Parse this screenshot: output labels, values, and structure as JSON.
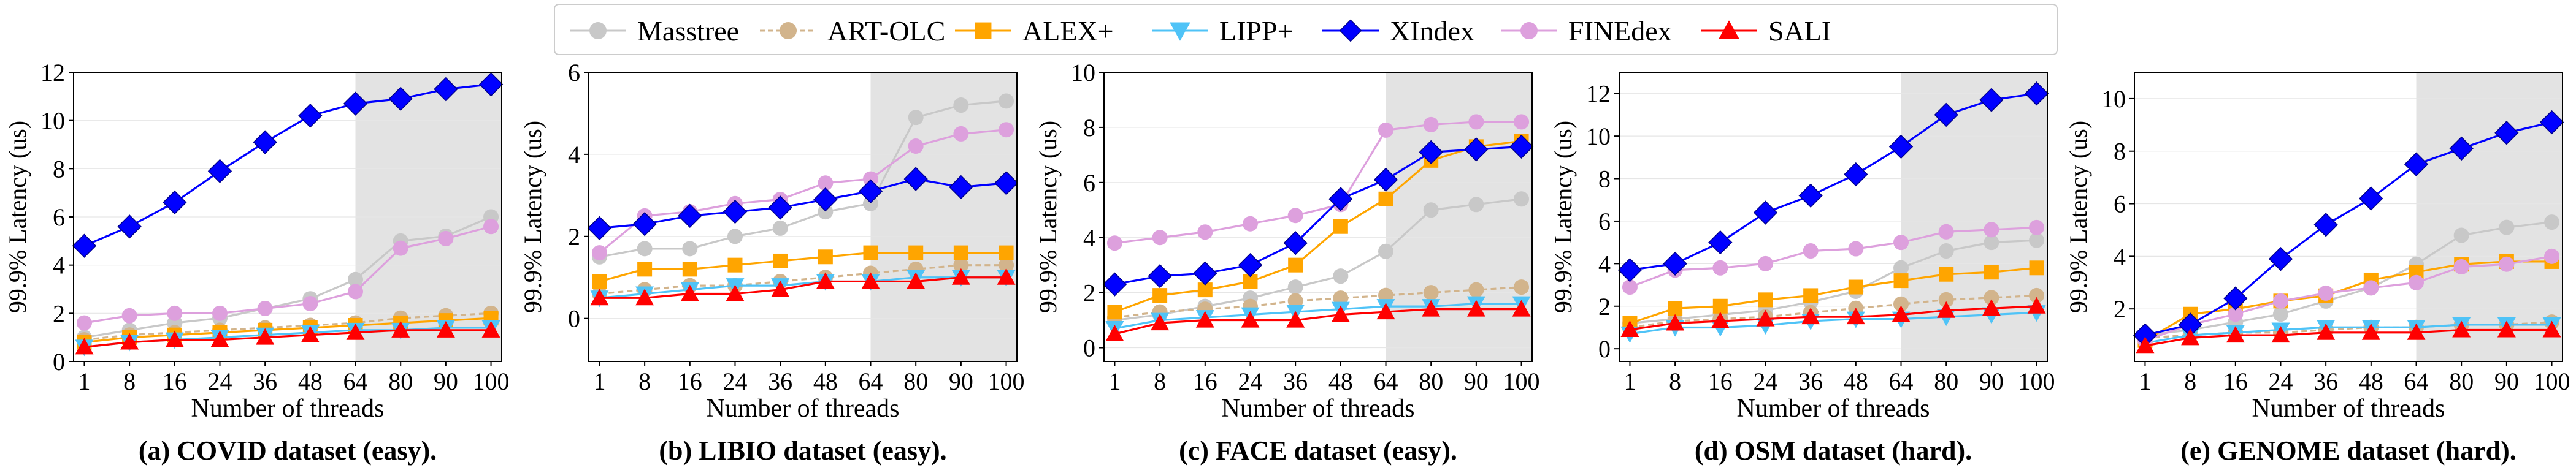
{
  "legend": [
    {
      "name": "Masstree",
      "color": "#c8c8c8",
      "marker": "circle",
      "dash": false
    },
    {
      "name": "ART-OLC",
      "color": "#d2b48c",
      "marker": "circle",
      "dash": true
    },
    {
      "name": "ALEX+",
      "color": "#ffa500",
      "marker": "square",
      "dash": false
    },
    {
      "name": "LIPP+",
      "color": "#4fc3f7",
      "marker": "triangle-down",
      "dash": false
    },
    {
      "name": "XIndex",
      "color": "#0000ff",
      "marker": "diamond",
      "dash": false
    },
    {
      "name": "FINEdex",
      "color": "#dda0dd",
      "marker": "circle",
      "dash": false
    },
    {
      "name": "SALI",
      "color": "#ff0000",
      "marker": "triangle-up",
      "dash": false
    }
  ],
  "chart_data": [
    {
      "type": "line",
      "title": "(a) COVID dataset (easy).",
      "xlabel": "Number of threads",
      "ylabel": "99.9% Latency (us)",
      "x": [
        "1",
        "8",
        "16",
        "24",
        "36",
        "48",
        "64",
        "80",
        "90",
        "100"
      ],
      "ylim": [
        0,
        12
      ],
      "yticks": [
        "0",
        "2",
        "4",
        "6",
        "8",
        "10",
        "12"
      ],
      "shaded_from": "64",
      "series": [
        {
          "name": "Masstree",
          "values": [
            1.0,
            1.3,
            1.6,
            1.8,
            2.2,
            2.6,
            3.4,
            5.0,
            5.2,
            6.0
          ]
        },
        {
          "name": "ART-OLC",
          "values": [
            0.9,
            1.1,
            1.2,
            1.3,
            1.4,
            1.5,
            1.6,
            1.8,
            1.9,
            2.0
          ]
        },
        {
          "name": "ALEX+",
          "values": [
            0.8,
            1.0,
            1.1,
            1.2,
            1.3,
            1.4,
            1.5,
            1.6,
            1.7,
            1.8
          ]
        },
        {
          "name": "LIPP+",
          "values": [
            0.6,
            0.8,
            0.9,
            1.0,
            1.1,
            1.2,
            1.3,
            1.3,
            1.4,
            1.4
          ]
        },
        {
          "name": "XIndex",
          "values": [
            4.8,
            5.6,
            6.6,
            7.9,
            9.1,
            10.2,
            10.7,
            10.9,
            11.3,
            11.5
          ]
        },
        {
          "name": "FINEdex",
          "values": [
            1.6,
            1.9,
            2.0,
            2.0,
            2.2,
            2.4,
            2.9,
            4.7,
            5.1,
            5.6
          ]
        },
        {
          "name": "SALI",
          "values": [
            0.6,
            0.8,
            0.9,
            0.9,
            1.0,
            1.1,
            1.2,
            1.3,
            1.3,
            1.3
          ]
        }
      ]
    },
    {
      "type": "line",
      "title": "(b) LIBIO dataset (easy).",
      "xlabel": "Number of threads",
      "ylabel": "99.9% Latency (us)",
      "x": [
        "1",
        "8",
        "16",
        "24",
        "36",
        "48",
        "64",
        "80",
        "90",
        "100"
      ],
      "ylim": [
        -1.05,
        6
      ],
      "yticks": [
        "0",
        "2",
        "4",
        "6"
      ],
      "shaded_from": "64",
      "series": [
        {
          "name": "Masstree",
          "values": [
            1.5,
            1.7,
            1.7,
            2.0,
            2.2,
            2.6,
            2.8,
            4.9,
            5.2,
            5.3
          ]
        },
        {
          "name": "ART-OLC",
          "values": [
            0.6,
            0.7,
            0.8,
            0.8,
            0.9,
            1.0,
            1.1,
            1.2,
            1.3,
            1.3
          ]
        },
        {
          "name": "ALEX+",
          "values": [
            0.9,
            1.2,
            1.2,
            1.3,
            1.4,
            1.5,
            1.6,
            1.6,
            1.6,
            1.6
          ]
        },
        {
          "name": "LIPP+",
          "values": [
            0.5,
            0.6,
            0.7,
            0.8,
            0.8,
            0.9,
            0.9,
            1.0,
            1.0,
            1.0
          ]
        },
        {
          "name": "XIndex",
          "values": [
            2.2,
            2.3,
            2.5,
            2.6,
            2.7,
            2.9,
            3.1,
            3.4,
            3.2,
            3.3
          ]
        },
        {
          "name": "FINEdex",
          "values": [
            1.6,
            2.5,
            2.6,
            2.8,
            2.9,
            3.3,
            3.4,
            4.2,
            4.5,
            4.6
          ]
        },
        {
          "name": "SALI",
          "values": [
            0.5,
            0.5,
            0.6,
            0.6,
            0.7,
            0.9,
            0.9,
            0.9,
            1.0,
            1.0
          ]
        }
      ]
    },
    {
      "type": "line",
      "title": "(c) FACE dataset (easy).",
      "xlabel": "Number of threads",
      "ylabel": "99.9% Latency (us)",
      "x": [
        "1",
        "8",
        "16",
        "24",
        "36",
        "48",
        "64",
        "80",
        "90",
        "100"
      ],
      "ylim": [
        -0.5,
        10
      ],
      "yticks": [
        "0",
        "2",
        "4",
        "6",
        "8",
        "10"
      ],
      "shaded_from": "64",
      "series": [
        {
          "name": "Masstree",
          "values": [
            1.0,
            1.2,
            1.5,
            1.8,
            2.2,
            2.6,
            3.5,
            5.0,
            5.2,
            5.4
          ]
        },
        {
          "name": "ART-OLC",
          "values": [
            1.1,
            1.3,
            1.4,
            1.5,
            1.7,
            1.8,
            1.9,
            2.0,
            2.1,
            2.2
          ]
        },
        {
          "name": "ALEX+",
          "values": [
            1.3,
            1.9,
            2.1,
            2.4,
            3.0,
            4.4,
            5.4,
            6.8,
            7.3,
            7.5
          ]
        },
        {
          "name": "LIPP+",
          "values": [
            0.7,
            1.0,
            1.1,
            1.2,
            1.3,
            1.4,
            1.5,
            1.5,
            1.6,
            1.6
          ]
        },
        {
          "name": "XIndex",
          "values": [
            2.3,
            2.6,
            2.7,
            3.0,
            3.8,
            5.4,
            6.1,
            7.1,
            7.2,
            7.3
          ]
        },
        {
          "name": "FINEdex",
          "values": [
            3.8,
            4.0,
            4.2,
            4.5,
            4.8,
            5.2,
            7.9,
            8.1,
            8.2,
            8.2
          ]
        },
        {
          "name": "SALI",
          "values": [
            0.5,
            0.9,
            1.0,
            1.0,
            1.0,
            1.2,
            1.3,
            1.4,
            1.4,
            1.4
          ]
        }
      ]
    },
    {
      "type": "line",
      "title": "(d) OSM dataset (hard).",
      "xlabel": "Number of threads",
      "ylabel": "99.9% Latency (us)",
      "x": [
        "1",
        "8",
        "16",
        "24",
        "36",
        "48",
        "64",
        "80",
        "90",
        "100"
      ],
      "ylim": [
        -0.6,
        13
      ],
      "yticks": [
        "0",
        "2",
        "4",
        "6",
        "8",
        "10",
        "12"
      ],
      "shaded_from": "64",
      "series": [
        {
          "name": "Masstree",
          "values": [
            1.2,
            1.4,
            1.6,
            1.8,
            2.2,
            2.7,
            3.8,
            4.6,
            5.0,
            5.1
          ]
        },
        {
          "name": "ART-OLC",
          "values": [
            1.0,
            1.3,
            1.4,
            1.5,
            1.7,
            1.9,
            2.1,
            2.3,
            2.4,
            2.5
          ]
        },
        {
          "name": "ALEX+",
          "values": [
            1.2,
            1.9,
            2.0,
            2.3,
            2.5,
            2.9,
            3.2,
            3.5,
            3.6,
            3.8
          ]
        },
        {
          "name": "LIPP+",
          "values": [
            0.7,
            1.0,
            1.0,
            1.1,
            1.3,
            1.4,
            1.4,
            1.5,
            1.6,
            1.7
          ]
        },
        {
          "name": "XIndex",
          "values": [
            3.7,
            4.0,
            5.0,
            6.4,
            7.2,
            8.2,
            9.5,
            11.0,
            11.7,
            12.0
          ]
        },
        {
          "name": "FINEdex",
          "values": [
            2.9,
            3.7,
            3.8,
            4.0,
            4.6,
            4.7,
            5.0,
            5.5,
            5.6,
            5.7
          ]
        },
        {
          "name": "SALI",
          "values": [
            0.9,
            1.2,
            1.3,
            1.4,
            1.5,
            1.5,
            1.6,
            1.8,
            1.9,
            2.0
          ]
        }
      ]
    },
    {
      "type": "line",
      "title": "(e) GENOME dataset (hard).",
      "xlabel": "Number of threads",
      "ylabel": "99.9% Latency (us)",
      "x": [
        "1",
        "8",
        "16",
        "24",
        "36",
        "48",
        "64",
        "80",
        "90",
        "100"
      ],
      "ylim": [
        0,
        11
      ],
      "yticks": [
        "2",
        "4",
        "6",
        "8",
        "10"
      ],
      "shaded_from": "64",
      "series": [
        {
          "name": "Masstree",
          "values": [
            1.0,
            1.2,
            1.5,
            1.8,
            2.3,
            2.8,
            3.7,
            4.8,
            5.1,
            5.3
          ]
        },
        {
          "name": "ART-OLC",
          "values": [
            0.9,
            1.0,
            1.1,
            1.1,
            1.2,
            1.3,
            1.3,
            1.4,
            1.4,
            1.5
          ]
        },
        {
          "name": "ALEX+",
          "values": [
            0.8,
            1.8,
            2.0,
            2.3,
            2.5,
            3.1,
            3.4,
            3.7,
            3.8,
            3.8
          ]
        },
        {
          "name": "LIPP+",
          "values": [
            0.7,
            1.0,
            1.1,
            1.2,
            1.3,
            1.3,
            1.3,
            1.4,
            1.4,
            1.4
          ]
        },
        {
          "name": "XIndex",
          "values": [
            1.0,
            1.4,
            2.4,
            3.9,
            5.2,
            6.2,
            7.5,
            8.1,
            8.7,
            9.1
          ]
        },
        {
          "name": "FINEdex",
          "values": [
            0.8,
            1.4,
            1.8,
            2.3,
            2.6,
            2.8,
            3.0,
            3.6,
            3.7,
            4.0
          ]
        },
        {
          "name": "SALI",
          "values": [
            0.6,
            0.9,
            1.0,
            1.0,
            1.1,
            1.1,
            1.1,
            1.2,
            1.2,
            1.2
          ]
        }
      ]
    }
  ]
}
